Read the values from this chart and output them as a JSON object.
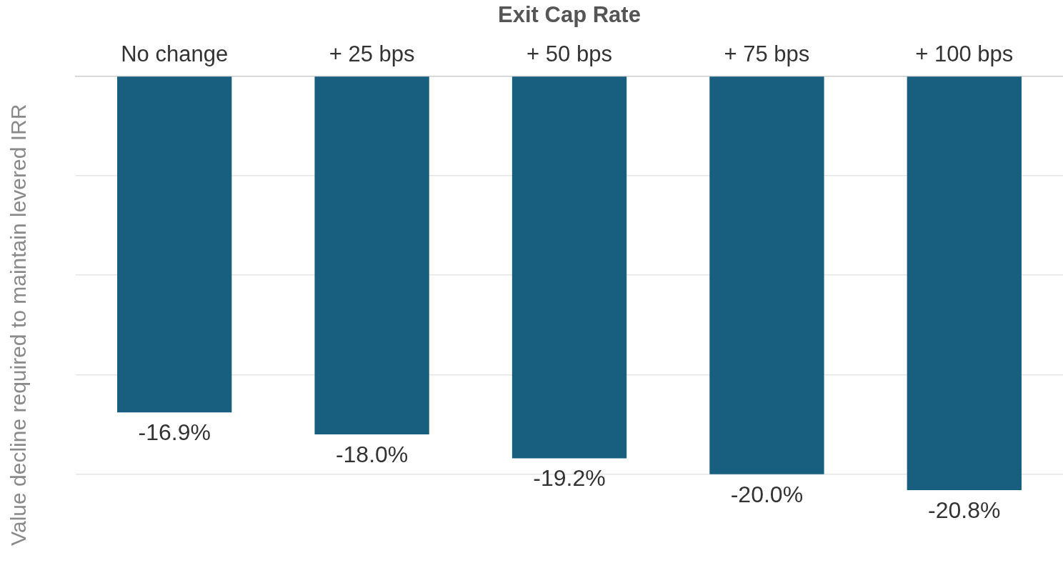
{
  "chart_data": {
    "type": "bar",
    "xlabel": "Exit Cap Rate",
    "ylabel": "Value decline required to maintain levered IRR",
    "categories": [
      "No change",
      "+ 25 bps",
      "+ 50 bps",
      "+ 75 bps",
      "+ 100 bps"
    ],
    "values": [
      -16.9,
      -18.0,
      -19.2,
      -20.0,
      -20.8
    ],
    "value_labels": [
      "-16.9%",
      "-18.0%",
      "-19.2%",
      "-20.0%",
      "-20.8%"
    ],
    "color": "#175e7f",
    "yticks": [
      {
        "value": -20,
        "label": null
      },
      {
        "value": -15,
        "label": null
      },
      {
        "value": -10,
        "label": null
      },
      {
        "value": -5,
        "label": null
      },
      {
        "value": 0,
        "label": null
      }
    ],
    "grid": "y",
    "tick_labels": "x",
    "legend": false
  }
}
